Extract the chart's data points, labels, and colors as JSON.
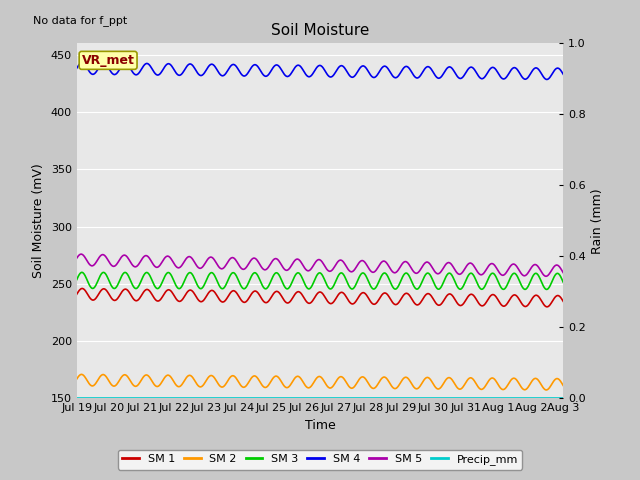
{
  "title": "Soil Moisture",
  "xlabel": "Time",
  "ylabel_left": "Soil Moisture (mV)",
  "ylabel_right": "Rain (mm)",
  "no_data_text": "No data for f_ppt",
  "vr_met_label": "VR_met",
  "ylim_left": [
    150,
    460
  ],
  "ylim_right": [
    0.0,
    1.0
  ],
  "yticks_left": [
    150,
    200,
    250,
    300,
    350,
    400,
    450
  ],
  "yticks_right": [
    0.0,
    0.2,
    0.4,
    0.6,
    0.8,
    1.0
  ],
  "xtick_labels": [
    "Jul 19",
    "Jul 20",
    "Jul 21",
    "Jul 22",
    "Jul 23",
    "Jul 24",
    "Jul 25",
    "Jul 26",
    "Jul 27",
    "Jul 28",
    "Jul 29",
    "Jul 30",
    "Jul 31",
    "Aug 1",
    "Aug 2",
    "Aug 3"
  ],
  "background_color": "#c8c8c8",
  "plot_bg_color": "#e8e8e8",
  "grid_color": "#ffffff",
  "sm1_color": "#cc0000",
  "sm2_color": "#ff9900",
  "sm3_color": "#00cc00",
  "sm4_color": "#0000ee",
  "sm5_color": "#aa00aa",
  "precip_color": "#00cccc",
  "sm1_base": 241,
  "sm1_amp": 5,
  "sm1_trend": -0.42,
  "sm2_base": 166,
  "sm2_amp": 5,
  "sm2_trend": -0.25,
  "sm3_base": 253,
  "sm3_amp": 7,
  "sm3_trend": -0.06,
  "sm4_base": 438,
  "sm4_amp": 5,
  "sm4_trend": -0.32,
  "sm5_base": 271,
  "sm5_amp": 5,
  "sm5_trend": -0.65,
  "n_points": 1000,
  "time_days": 15,
  "freq": 1.5
}
